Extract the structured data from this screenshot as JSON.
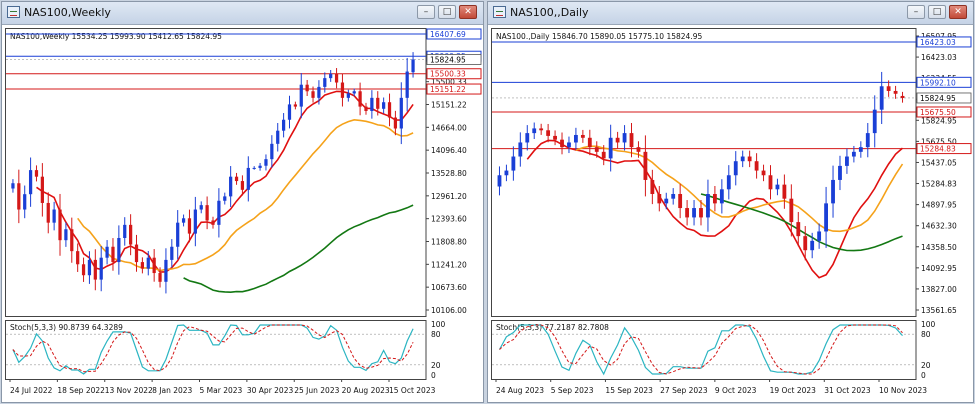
{
  "left": {
    "window_title": "NAS100,Weekly",
    "info": "NAS100,Weekly  15534.25 15993.90 15412.65 15824.95",
    "stoch_label": "Stoch(5,3,3) 90.8739 64.3289",
    "price_ticks": [
      "16407.69",
      "15900.25",
      "15500.33",
      "15151.22",
      "14664.00",
      "14096.40",
      "13528.80",
      "12961.20",
      "12393.60",
      "11808.80",
      "11241.20",
      "10673.60",
      "10106.00"
    ],
    "stoch_ticks": [
      "100",
      "80",
      "20",
      "0"
    ],
    "date_ticks": [
      "24 Jul 2022",
      "18 Sep 2022",
      "13 Nov 2022",
      "8 Jan 2023",
      "5 Mar 2023",
      "30 Apr 2023",
      "25 Jun 2023",
      "20 Aug 2023",
      "15 Oct 2023"
    ]
  },
  "right": {
    "window_title": "NAS100,,Daily",
    "info": "NAS100.,Daily  15846.70 15890.05 15775.10 15824.95",
    "stoch_label": "Stoch(5,3,3) 77.2187 82.7808",
    "price_ticks": [
      "16507.95",
      "16423.03",
      "16234.55",
      "15992.10",
      "15824.95",
      "15675.50",
      "15437.05",
      "15284.83",
      "14897.95",
      "14632.30",
      "14358.50",
      "14092.95",
      "13827.00",
      "13561.65"
    ],
    "stoch_ticks": [
      "100",
      "80",
      "20",
      "0"
    ],
    "date_ticks": [
      "24 Aug 2023",
      "5 Sep 2023",
      "15 Sep 2023",
      "27 Sep 2023",
      "9 Oct 2023",
      "19 Oct 2023",
      "31 Oct 2023",
      "10 Nov 2023"
    ]
  },
  "colors": {
    "bull": "#1a3fd6",
    "bear": "#d41818",
    "ma_fast": "#e01010",
    "ma_mid": "#f5a21a",
    "ma_slow": "#137813",
    "stoch_main": "#2bb5c2",
    "stoch_signal": "#d41818",
    "hline_blue": "#1a3fd6",
    "hline_red": "#d41818"
  },
  "chart_data": [
    {
      "type": "candlestick",
      "name": "NAS100,Weekly",
      "ohlc_last": {
        "open": 15534.25,
        "high": 15993.9,
        "low": 15412.65,
        "close": 15824.95
      },
      "x_labels": [
        "24 Jul 2022",
        "18 Sep 2022",
        "13 Nov 2022",
        "8 Jan 2023",
        "5 Mar 2023",
        "30 Apr 2023",
        "25 Jun 2023",
        "20 Aug 2023",
        "15 Oct 2023"
      ],
      "ylim": [
        10106.0,
        16407.69
      ],
      "closes": [
        13000,
        12400,
        12750,
        13300,
        13150,
        12550,
        12100,
        12400,
        11700,
        11950,
        11450,
        11150,
        10900,
        11250,
        10800,
        11300,
        11550,
        11200,
        11750,
        12050,
        11600,
        11200,
        11050,
        11300,
        10950,
        10750,
        11250,
        11550,
        12100,
        12200,
        11850,
        12400,
        12500,
        12150,
        12050,
        12600,
        12700,
        13150,
        13050,
        12850,
        13350,
        13350,
        13400,
        13550,
        13900,
        14200,
        14450,
        14800,
        14750,
        15250,
        15100,
        14950,
        15200,
        15400,
        15500,
        15300,
        14950,
        15050,
        15100,
        14750,
        14650,
        14950,
        14700,
        14850,
        14500,
        14250,
        14950,
        15550,
        15825
      ],
      "ma_fast_last": 14800,
      "ma_mid_last": 14150,
      "ma_slow_last": 12500,
      "hlines": [
        16407.69,
        15900.25,
        15500.33,
        15151.22
      ],
      "stoch": {
        "main": 90.8739,
        "signal": 64.3289,
        "levels": [
          80,
          20
        ]
      }
    },
    {
      "type": "candlestick",
      "name": "NAS100,,Daily",
      "ohlc_last": {
        "open": 15846.7,
        "high": 15890.05,
        "low": 15775.1,
        "close": 15824.95
      },
      "x_labels": [
        "24 Aug 2023",
        "5 Sep 2023",
        "15 Sep 2023",
        "27 Sep 2023",
        "9 Oct 2023",
        "19 Oct 2023",
        "31 Oct 2023",
        "10 Nov 2023"
      ],
      "ylim": [
        13561.65,
        16507.95
      ],
      "closes": [
        15000,
        15050,
        15200,
        15350,
        15450,
        15500,
        15480,
        15420,
        15380,
        15300,
        15350,
        15430,
        15400,
        15300,
        15250,
        15180,
        15400,
        15350,
        15450,
        15300,
        15250,
        14950,
        14800,
        14700,
        14750,
        14800,
        14650,
        14550,
        14650,
        14550,
        14800,
        14700,
        14850,
        15000,
        15150,
        15200,
        15150,
        15050,
        15000,
        14850,
        14900,
        14750,
        14500,
        14350,
        14200,
        14300,
        14400,
        14700,
        14950,
        15100,
        15200,
        15250,
        15300,
        15450,
        15700,
        15950,
        15900,
        15870,
        15825
      ],
      "ma_fast_last": 15290,
      "ma_mid_last": 15120,
      "ma_slow_last": 14350,
      "hlines": [
        16423.03,
        15992.1,
        15675.5,
        15284.83
      ],
      "stoch": {
        "main": 77.2187,
        "signal": 82.7808,
        "levels": [
          80,
          20
        ]
      }
    }
  ]
}
